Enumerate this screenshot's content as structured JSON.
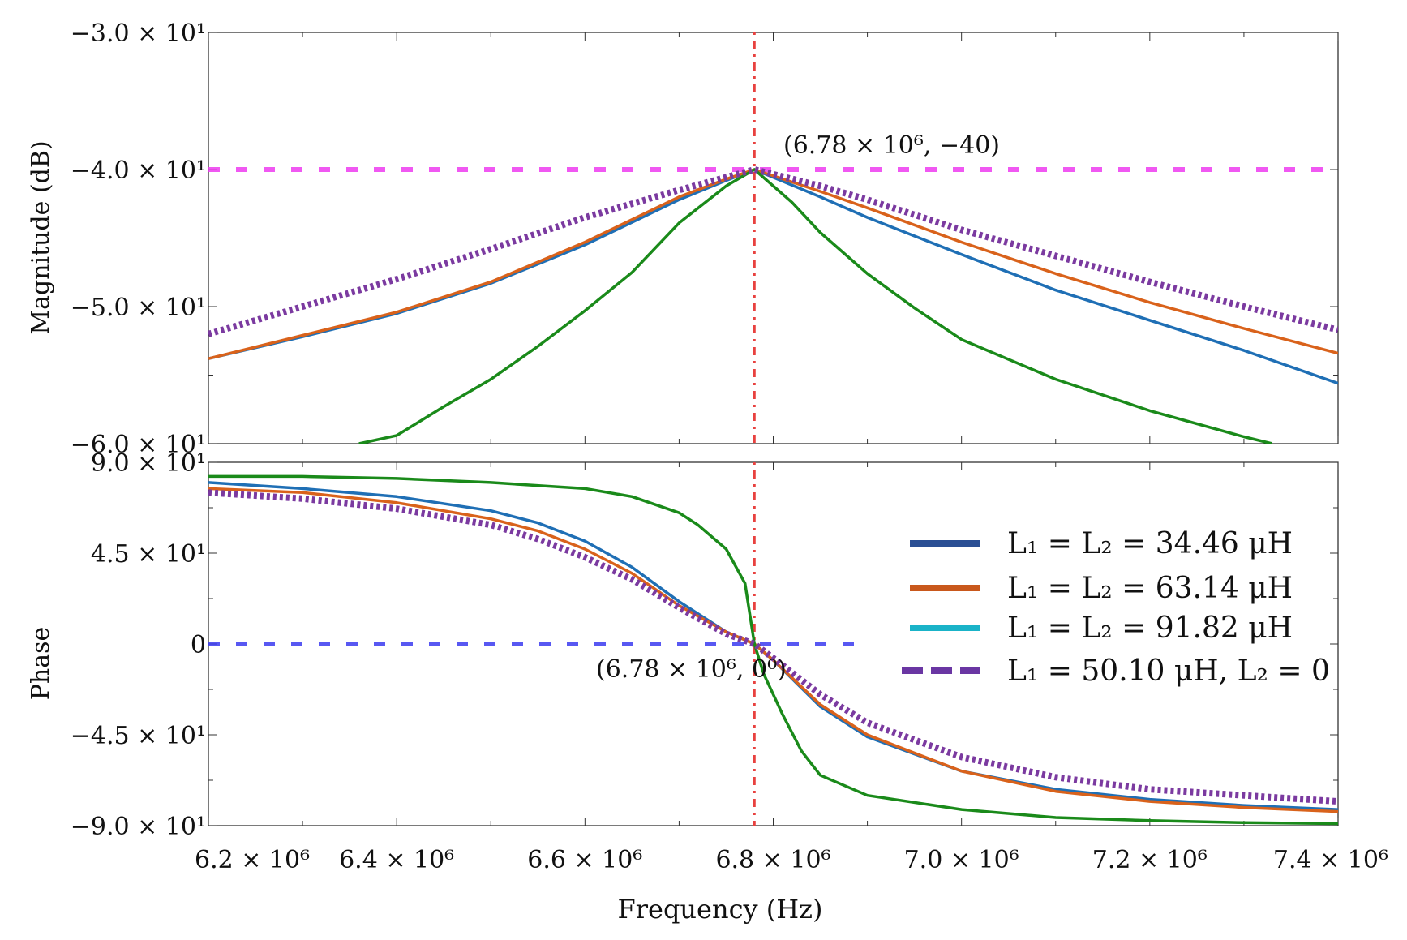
{
  "chart_data": [
    {
      "type": "line",
      "panel": "magnitude",
      "title": "",
      "xlabel": "",
      "ylabel": "Magnitude (dB)",
      "xlim": [
        6200000.0,
        7400000.0
      ],
      "ylim": [
        -60,
        -30
      ],
      "yticks": [
        {
          "v": -30,
          "label": "−3.0 × 10¹"
        },
        {
          "v": -40,
          "label": "−4.0 × 10¹"
        },
        {
          "v": -50,
          "label": "−5.0 × 10¹"
        },
        {
          "v": -60,
          "label": "−6.0 × 10¹"
        }
      ],
      "grid": false,
      "annotations": [
        {
          "text": "(6.78 × 10⁶, −40)",
          "x": 6780000.0,
          "y": -40
        }
      ],
      "reference_lines": [
        {
          "orientation": "vertical",
          "value": 6780000.0,
          "color": "#e8413f"
        },
        {
          "orientation": "horizontal",
          "value": -40,
          "color": "#ee3cf0"
        }
      ],
      "series": [
        {
          "name": "L₁ = L₂ = 34.46 μH",
          "color": "#1f6fb5",
          "style": "solid",
          "x": [
            6200000.0,
            6300000.0,
            6400000.0,
            6500000.0,
            6600000.0,
            6700000.0,
            6750000.0,
            6780000.0,
            6850000.0,
            6900000.0,
            7000000.0,
            7100000.0,
            7200000.0,
            7300000.0,
            7400000.0
          ],
          "y": [
            -53.8,
            -52.2,
            -50.5,
            -48.3,
            -45.5,
            -42.2,
            -40.8,
            -40,
            -42,
            -43.5,
            -46.2,
            -48.8,
            -51,
            -53.2,
            -55.6
          ]
        },
        {
          "name": "L₁ = L₂ = 63.14 μH",
          "color": "#d9621b",
          "style": "solid",
          "x": [
            6200000.0,
            6300000.0,
            6400000.0,
            6500000.0,
            6600000.0,
            6700000.0,
            6750000.0,
            6780000.0,
            6850000.0,
            6900000.0,
            7000000.0,
            7100000.0,
            7200000.0,
            7300000.0,
            7400000.0
          ],
          "y": [
            -53.8,
            -52.1,
            -50.4,
            -48.2,
            -45.3,
            -42,
            -40.7,
            -40,
            -41.6,
            -42.8,
            -45.3,
            -47.6,
            -49.7,
            -51.6,
            -53.4
          ]
        },
        {
          "name": "L₁ = L₂ = 91.82 μH",
          "color": "#1a8a1a",
          "style": "solid",
          "x": [
            6360000.0,
            6400000.0,
            6450000.0,
            6500000.0,
            6550000.0,
            6600000.0,
            6650000.0,
            6700000.0,
            6750000.0,
            6780000.0,
            6820000.0,
            6850000.0,
            6900000.0,
            6950000.0,
            7000000.0,
            7100000.0,
            7200000.0,
            7300000.0,
            7330000.0
          ],
          "y": [
            -60,
            -59.4,
            -57.3,
            -55.3,
            -52.9,
            -50.3,
            -47.5,
            -43.9,
            -41.2,
            -40,
            -42.4,
            -44.6,
            -47.6,
            -50.1,
            -52.4,
            -55.3,
            -57.6,
            -59.5,
            -60
          ]
        },
        {
          "name": "L₁ = 50.10 μH, L₂ = 0",
          "color": "#7b3aa0",
          "style": "dashed",
          "x": [
            6200000.0,
            6300000.0,
            6400000.0,
            6500000.0,
            6600000.0,
            6700000.0,
            6780000.0,
            6850000.0,
            6900000.0,
            7000000.0,
            7100000.0,
            7200000.0,
            7300000.0,
            7400000.0
          ],
          "y": [
            -52,
            -50,
            -48,
            -45.8,
            -43.5,
            -41.5,
            -40,
            -41.2,
            -42.2,
            -44.4,
            -46.3,
            -48.2,
            -50,
            -51.7
          ]
        }
      ]
    },
    {
      "type": "line",
      "panel": "phase",
      "title": "",
      "xlabel": "Frequency (Hz)",
      "ylabel": "Phase",
      "xlim": [
        6200000.0,
        7400000.0
      ],
      "ylim": [
        -90,
        90
      ],
      "xticks": [
        {
          "v": 6200000.0,
          "label": "6.2 × 10⁶"
        },
        {
          "v": 6400000.0,
          "label": "6.4 × 10⁶"
        },
        {
          "v": 6600000.0,
          "label": "6.6 × 10⁶"
        },
        {
          "v": 6800000.0,
          "label": "6.8 × 10⁶"
        },
        {
          "v": 7000000.0,
          "label": "7.0 × 10⁶"
        },
        {
          "v": 7200000.0,
          "label": "7.2 × 10⁶"
        },
        {
          "v": 7400000.0,
          "label": "7.4 × 10⁶"
        }
      ],
      "yticks": [
        {
          "v": 90,
          "label": "9.0 × 10¹"
        },
        {
          "v": 45,
          "label": "4.5 × 10¹"
        },
        {
          "v": 0,
          "label": "0"
        },
        {
          "v": -45,
          "label": "−4.5 × 10¹"
        },
        {
          "v": -90,
          "label": "−9.0 × 10¹"
        }
      ],
      "grid": false,
      "legend_position": "right",
      "annotations": [
        {
          "text": "(6.78 × 10⁶, 0⁰)",
          "x": 6780000.0,
          "y": 0
        }
      ],
      "reference_lines": [
        {
          "orientation": "vertical",
          "value": 6780000.0,
          "color": "#e8413f"
        },
        {
          "orientation": "horizontal",
          "value": 0,
          "color": "#3c3cf0",
          "x_end": 6900000.0
        }
      ],
      "series": [
        {
          "name": "L₁ = L₂ = 34.46 μH",
          "color": "#1f6fb5",
          "style": "solid",
          "x": [
            6200000.0,
            6300000.0,
            6400000.0,
            6500000.0,
            6550000.0,
            6600000.0,
            6650000.0,
            6700000.0,
            6750000.0,
            6780000.0,
            6800000.0,
            6850000.0,
            6900000.0,
            7000000.0,
            7100000.0,
            7200000.0,
            7300000.0,
            7400000.0
          ],
          "y": [
            80,
            77,
            73,
            66,
            60,
            51,
            38,
            21,
            6,
            0,
            -8,
            -31,
            -46,
            -63,
            -72,
            -77,
            -80,
            -82
          ]
        },
        {
          "name": "L₁ = L₂ = 63.14 μH",
          "color": "#d9621b",
          "style": "solid",
          "x": [
            6200000.0,
            6300000.0,
            6400000.0,
            6500000.0,
            6550000.0,
            6600000.0,
            6650000.0,
            6700000.0,
            6750000.0,
            6780000.0,
            6800000.0,
            6850000.0,
            6900000.0,
            7000000.0,
            7100000.0,
            7200000.0,
            7300000.0,
            7400000.0
          ],
          "y": [
            77,
            75,
            70,
            62,
            56,
            47,
            35,
            19,
            6,
            0,
            -8,
            -30,
            -45,
            -63,
            -73,
            -78,
            -81,
            -83
          ]
        },
        {
          "name": "L₁ = L₂ = 91.82 μH",
          "color": "#1a8a1a",
          "style": "solid",
          "x": [
            6200000.0,
            6300000.0,
            6400000.0,
            6500000.0,
            6600000.0,
            6650000.0,
            6700000.0,
            6720000.0,
            6750000.0,
            6770000.0,
            6780000.0,
            6790000.0,
            6810000.0,
            6830000.0,
            6850000.0,
            6900000.0,
            7000000.0,
            7100000.0,
            7200000.0,
            7300000.0,
            7400000.0
          ],
          "y": [
            83,
            83,
            82,
            80,
            77,
            73,
            65,
            59,
            47,
            30,
            0,
            -15,
            -35,
            -53,
            -65,
            -75,
            -82,
            -86,
            -87.5,
            -88.5,
            -89
          ]
        },
        {
          "name": "L₁ = 50.10 μH, L₂ = 0",
          "color": "#7b3aa0",
          "style": "dashed",
          "x": [
            6200000.0,
            6300000.0,
            6400000.0,
            6500000.0,
            6550000.0,
            6600000.0,
            6650000.0,
            6700000.0,
            6750000.0,
            6780000.0,
            6800000.0,
            6850000.0,
            6900000.0,
            7000000.0,
            7100000.0,
            7200000.0,
            7300000.0,
            7400000.0
          ],
          "y": [
            75,
            72,
            67,
            59,
            52,
            43,
            32,
            18,
            5,
            0,
            -7,
            -25,
            -39,
            -56,
            -66,
            -72,
            -75,
            -78
          ]
        }
      ]
    }
  ]
}
